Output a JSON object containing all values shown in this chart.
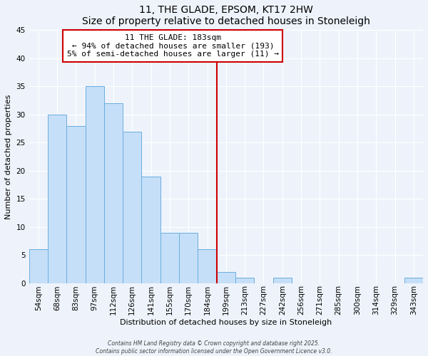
{
  "title": "11, THE GLADE, EPSOM, KT17 2HW",
  "subtitle": "Size of property relative to detached houses in Stoneleigh",
  "xlabel": "Distribution of detached houses by size in Stoneleigh",
  "ylabel": "Number of detached properties",
  "bar_labels": [
    "54sqm",
    "68sqm",
    "83sqm",
    "97sqm",
    "112sqm",
    "126sqm",
    "141sqm",
    "155sqm",
    "170sqm",
    "184sqm",
    "199sqm",
    "213sqm",
    "227sqm",
    "242sqm",
    "256sqm",
    "271sqm",
    "285sqm",
    "300sqm",
    "314sqm",
    "329sqm",
    "343sqm"
  ],
  "bar_values": [
    6,
    30,
    28,
    35,
    32,
    27,
    19,
    9,
    9,
    6,
    2,
    1,
    0,
    1,
    0,
    0,
    0,
    0,
    0,
    0,
    1
  ],
  "bar_color": "#c6dff8",
  "bar_edge_color": "#6aaee0",
  "vline_color": "#cc0000",
  "annotation_line1": "11 THE GLADE: 183sqm",
  "annotation_line2": "← 94% of detached houses are smaller (193)",
  "annotation_line3": "5% of semi-detached houses are larger (11) →",
  "annotation_box_edge": "#cc0000",
  "ylim": [
    0,
    45
  ],
  "yticks": [
    0,
    5,
    10,
    15,
    20,
    25,
    30,
    35,
    40,
    45
  ],
  "footer_line1": "Contains HM Land Registry data © Crown copyright and database right 2025.",
  "footer_line2": "Contains public sector information licensed under the Open Government Licence v3.0.",
  "bg_color": "#eef3fb",
  "grid_color": "#ffffff"
}
